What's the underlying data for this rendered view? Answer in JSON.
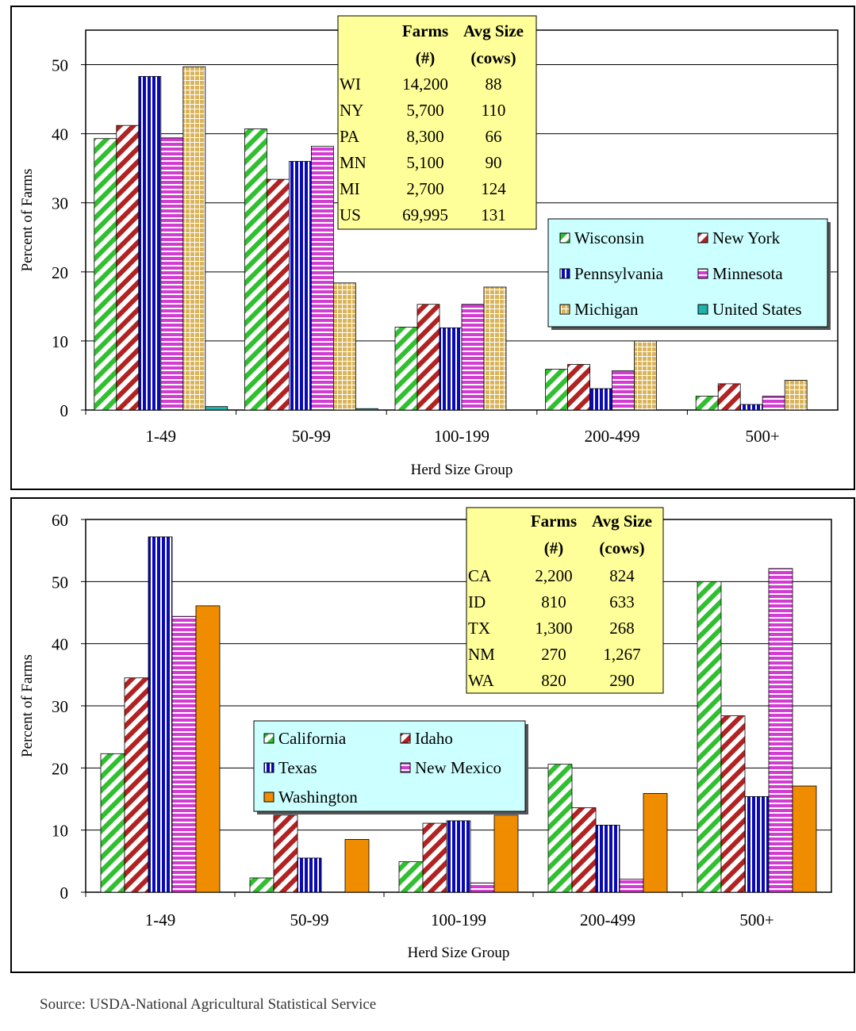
{
  "source": "Source: USDA-National Agricultural Statistical Service",
  "colors": {
    "green": "#2fbf2f",
    "red": "#b22222",
    "blue": "#0a0ab4",
    "magenta": "#d23cd2",
    "tan": "#d9b45a",
    "cyan": "#20b2aa",
    "orange": "#f08c00",
    "table_bg": "#ffff99",
    "legend_bg": "#ccffff"
  },
  "chart_data": [
    {
      "type": "bar",
      "title": "",
      "xlabel": "Herd Size Group",
      "ylabel": "Percent of Farms",
      "ylim": [
        0,
        55
      ],
      "yticks": [
        0,
        10,
        20,
        30,
        40,
        50
      ],
      "categories": [
        "1-49",
        "50-99",
        "100-199",
        "200-499",
        "500+"
      ],
      "series": [
        {
          "name": "Wisconsin",
          "color": "green",
          "pattern": "diag",
          "values": [
            39.3,
            40.7,
            12.0,
            5.9,
            2.0
          ]
        },
        {
          "name": "New York",
          "color": "red",
          "pattern": "diag",
          "values": [
            41.2,
            33.4,
            15.3,
            6.6,
            3.8
          ]
        },
        {
          "name": "Pennsylvania",
          "color": "blue",
          "pattern": "vert",
          "values": [
            48.3,
            36.0,
            11.9,
            3.1,
            0.8
          ]
        },
        {
          "name": "Minnesota",
          "color": "magenta",
          "pattern": "horiz",
          "values": [
            39.4,
            38.2,
            15.3,
            5.7,
            2.0
          ]
        },
        {
          "name": "Michigan",
          "color": "tan",
          "pattern": "grid",
          "values": [
            49.7,
            18.4,
            17.8,
            10.0,
            4.3
          ]
        },
        {
          "name": "United States",
          "color": "cyan",
          "pattern": "solid",
          "values": [
            0.5,
            0.2,
            0,
            0,
            0
          ]
        }
      ],
      "legend_placement": "right",
      "table": {
        "headers": [
          [
            "",
            "Farms",
            "Avg Size"
          ],
          [
            "",
            "(#)",
            "(cows)"
          ]
        ],
        "rows": [
          [
            "WI",
            "14,200",
            "88"
          ],
          [
            "NY",
            "5,700",
            "110"
          ],
          [
            "PA",
            "8,300",
            "66"
          ],
          [
            "MN",
            "5,100",
            "90"
          ],
          [
            "MI",
            "2,700",
            "124"
          ],
          [
            "US",
            "69,995",
            "131"
          ]
        ]
      }
    },
    {
      "type": "bar",
      "title": "",
      "xlabel": "Herd Size Group",
      "ylabel": "Percent of Farms",
      "ylim": [
        0,
        60
      ],
      "yticks": [
        0,
        10,
        20,
        30,
        40,
        50,
        60
      ],
      "categories": [
        "1-49",
        "50-99",
        "100-199",
        "200-499",
        "500+"
      ],
      "series": [
        {
          "name": "California",
          "color": "green",
          "pattern": "diag",
          "values": [
            22.3,
            2.3,
            4.9,
            20.6,
            50.0
          ]
        },
        {
          "name": "Idaho",
          "color": "red",
          "pattern": "diag",
          "values": [
            34.5,
            12.4,
            11.1,
            13.6,
            28.4
          ]
        },
        {
          "name": "Texas",
          "color": "blue",
          "pattern": "vert",
          "values": [
            57.2,
            5.5,
            11.5,
            10.8,
            15.4
          ]
        },
        {
          "name": "New Mexico",
          "color": "magenta",
          "pattern": "horiz",
          "values": [
            44.4,
            0,
            1.5,
            2.1,
            52.1
          ]
        },
        {
          "name": "Washington",
          "color": "orange",
          "pattern": "solid",
          "values": [
            46.1,
            8.5,
            12.4,
            15.9,
            17.1
          ]
        }
      ],
      "legend_placement": "center-left",
      "table": {
        "headers": [
          [
            "",
            "Farms",
            "Avg Size"
          ],
          [
            "",
            "(#)",
            "(cows)"
          ]
        ],
        "rows": [
          [
            "CA",
            "2,200",
            "824"
          ],
          [
            "ID",
            "810",
            "633"
          ],
          [
            "TX",
            "1,300",
            "268"
          ],
          [
            "NM",
            "270",
            "1,267"
          ],
          [
            "WA",
            "820",
            "290"
          ]
        ]
      }
    }
  ]
}
